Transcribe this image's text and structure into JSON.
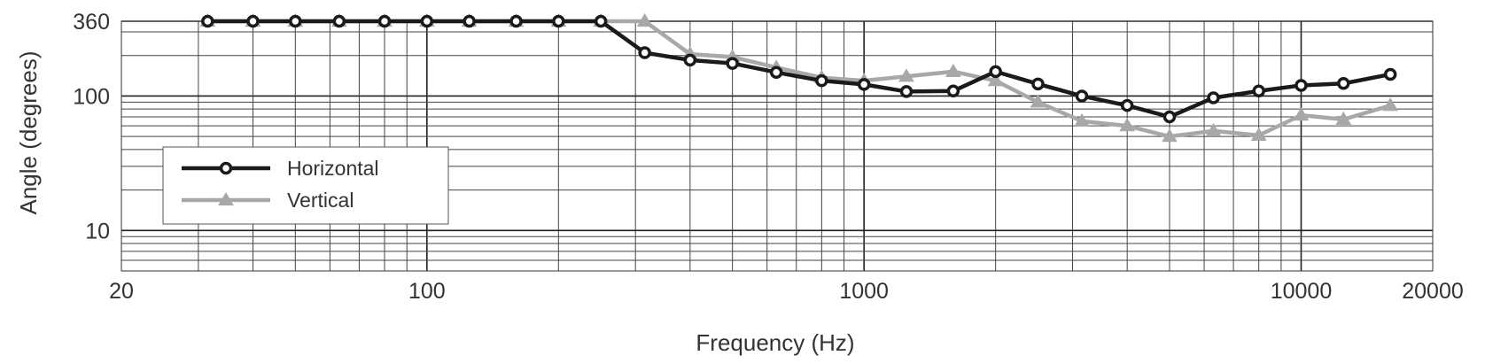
{
  "chart_data": {
    "type": "line",
    "xlabel": "Frequency (Hz)",
    "ylabel": "Angle (degrees)",
    "x_scale": "log",
    "y_scale": "log",
    "xlim": [
      20,
      20000
    ],
    "ylim": [
      5,
      360
    ],
    "x_ticks": [
      20,
      100,
      1000,
      10000,
      20000
    ],
    "x_tick_labels": [
      "20",
      "100",
      "1000",
      "10000",
      "20000"
    ],
    "y_ticks": [
      10,
      100,
      360
    ],
    "y_tick_labels": [
      "10",
      "100",
      "360"
    ],
    "grid": true,
    "legend_position": "left",
    "x": [
      31.5,
      40,
      50,
      63,
      80,
      100,
      125,
      160,
      200,
      250,
      315,
      400,
      500,
      630,
      800,
      1000,
      1250,
      1600,
      2000,
      2500,
      3150,
      4000,
      5000,
      6300,
      8000,
      10000,
      12500,
      16000
    ],
    "series": [
      {
        "name": "Horizontal",
        "color": "#1a1a1a",
        "marker": "circle",
        "values": [
          360,
          360,
          360,
          360,
          360,
          360,
          360,
          360,
          360,
          360,
          210,
          185,
          175,
          150,
          130,
          122,
          108,
          109,
          152,
          123,
          100,
          85,
          70,
          97,
          109,
          120,
          124,
          145
        ]
      },
      {
        "name": "Vertical",
        "color": "#a8a8a8",
        "marker": "triangle",
        "values": [
          360,
          360,
          360,
          360,
          360,
          360,
          360,
          360,
          360,
          360,
          360,
          205,
          195,
          163,
          137,
          130,
          140,
          152,
          130,
          90,
          65,
          60,
          50,
          55,
          51,
          72,
          67,
          85
        ]
      }
    ]
  }
}
